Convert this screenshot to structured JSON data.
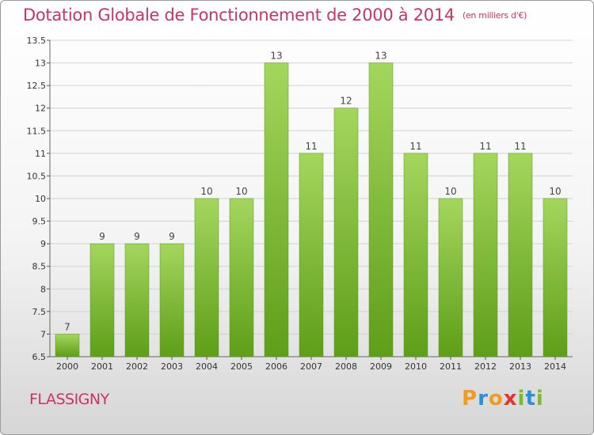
{
  "chart_data": {
    "type": "bar",
    "title": "Dotation Globale de Fonctionnement de 2000 à 2014",
    "unit_label": "(en milliers d'€)",
    "categories": [
      "2000",
      "2001",
      "2002",
      "2003",
      "2004",
      "2005",
      "2006",
      "2007",
      "2008",
      "2009",
      "2010",
      "2011",
      "2012",
      "2013",
      "2014"
    ],
    "values": [
      7,
      9,
      9,
      9,
      10,
      10,
      13,
      11,
      12,
      13,
      11,
      10,
      11,
      11,
      10
    ],
    "data_labels": [
      "7",
      "9",
      "9",
      "9",
      "10",
      "10",
      "13",
      "11",
      "12",
      "13",
      "11",
      "10",
      "11",
      "11",
      "10"
    ],
    "ylim": [
      6.5,
      13.5
    ],
    "yticks": [
      6.5,
      7,
      7.5,
      8,
      8.5,
      9,
      9.5,
      10,
      10.5,
      11,
      11.5,
      12,
      12.5,
      13,
      13.5
    ],
    "ytick_labels": [
      "6.5",
      "7",
      "7.5",
      "8",
      "8.5",
      "9",
      "9.5",
      "10",
      "10.5",
      "11",
      "11.5",
      "12",
      "12.5",
      "13",
      "13.5"
    ],
    "grid": true,
    "bar_color": "#7fc132",
    "bar_color_top": "#a4d65e",
    "title_color": "#c8336a"
  },
  "footer": {
    "commune": "FLASSIGNY",
    "logo": "Proxiti"
  }
}
